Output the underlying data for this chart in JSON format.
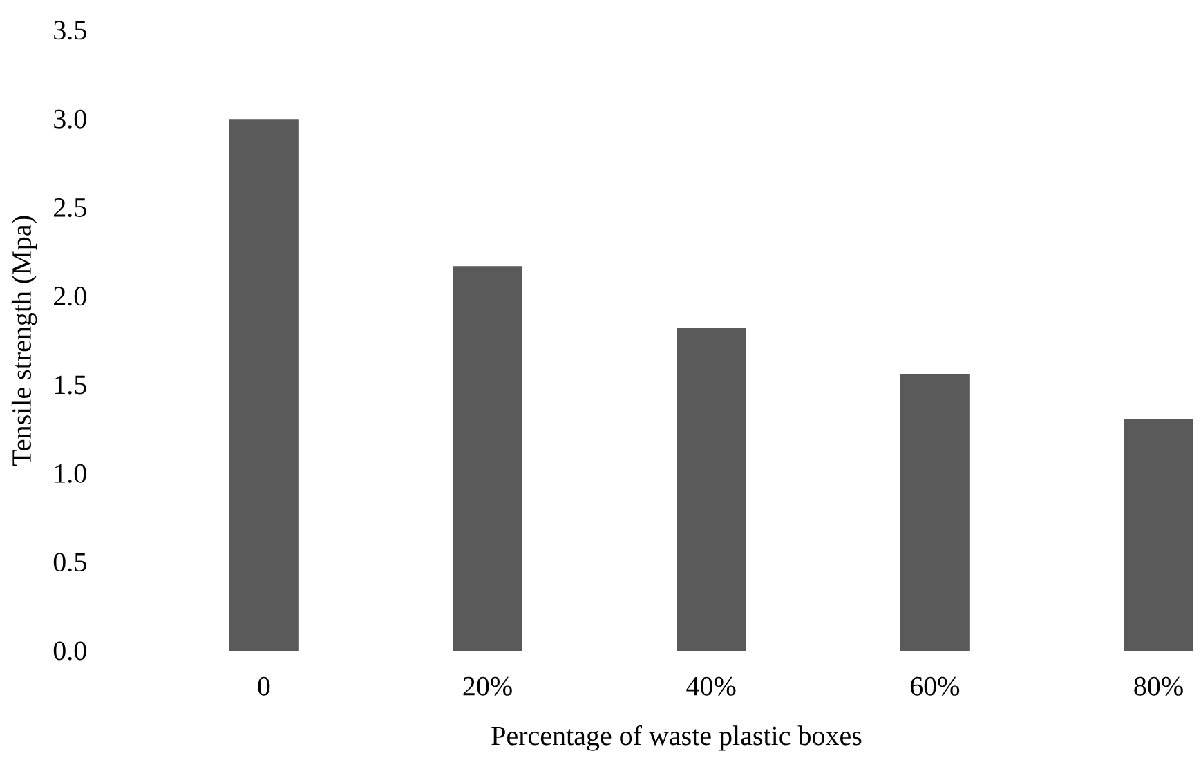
{
  "chart_data": {
    "type": "bar",
    "xlabel": "Percentage of  waste plastic boxes",
    "ylabel": "Tensile strength (Mpa)",
    "categories": [
      "0",
      "20%",
      "40%",
      "60%",
      "80%"
    ],
    "values": [
      3.0,
      2.17,
      1.82,
      1.56,
      1.31
    ],
    "color": "#5a5a5a",
    "ylim": [
      0,
      3.5
    ],
    "yticks": [
      {
        "value": 0,
        "label": "0.0"
      },
      0.5,
      {
        "value": 1,
        "label": "1.0"
      },
      1.5,
      {
        "value": 2,
        "label": "2.0"
      },
      2.5,
      {
        "value": 3,
        "label": "3.0"
      },
      3.5
    ]
  }
}
